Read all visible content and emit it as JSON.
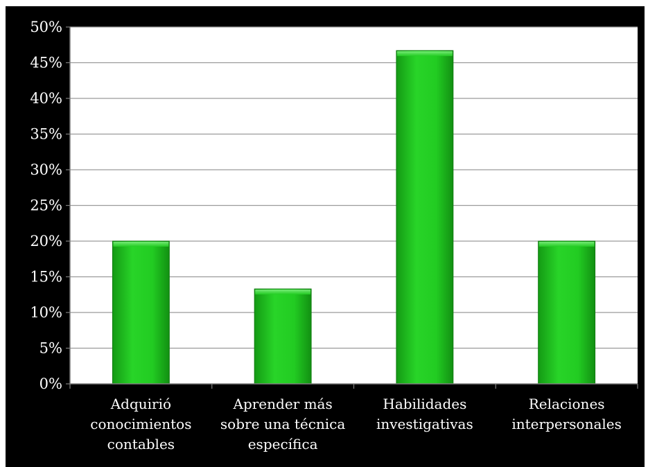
{
  "chart_data": {
    "type": "bar",
    "categories": [
      [
        "Adquirió",
        "conocimientos",
        "contables"
      ],
      [
        "Aprender más",
        "sobre una técnica",
        "específica"
      ],
      [
        "Habilidades",
        "investigativas"
      ],
      [
        "Relaciones",
        "interpersonales"
      ]
    ],
    "values": [
      0.2,
      0.133,
      0.467,
      0.2
    ],
    "y_ticks": [
      "0%",
      "5%",
      "10%",
      "15%",
      "20%",
      "25%",
      "30%",
      "35%",
      "40%",
      "45%",
      "50%"
    ],
    "ylim": [
      0,
      0.5
    ],
    "title": "",
    "xlabel": "",
    "ylabel": "",
    "grid": true,
    "legend": "none",
    "colors": {
      "background": "#000000",
      "plot_area": "#ffffff",
      "bar_fill": "#22cc22",
      "bar_edge": "#0f7a0f",
      "gridline": "#9a9a9a",
      "text": "#ffffff"
    }
  }
}
